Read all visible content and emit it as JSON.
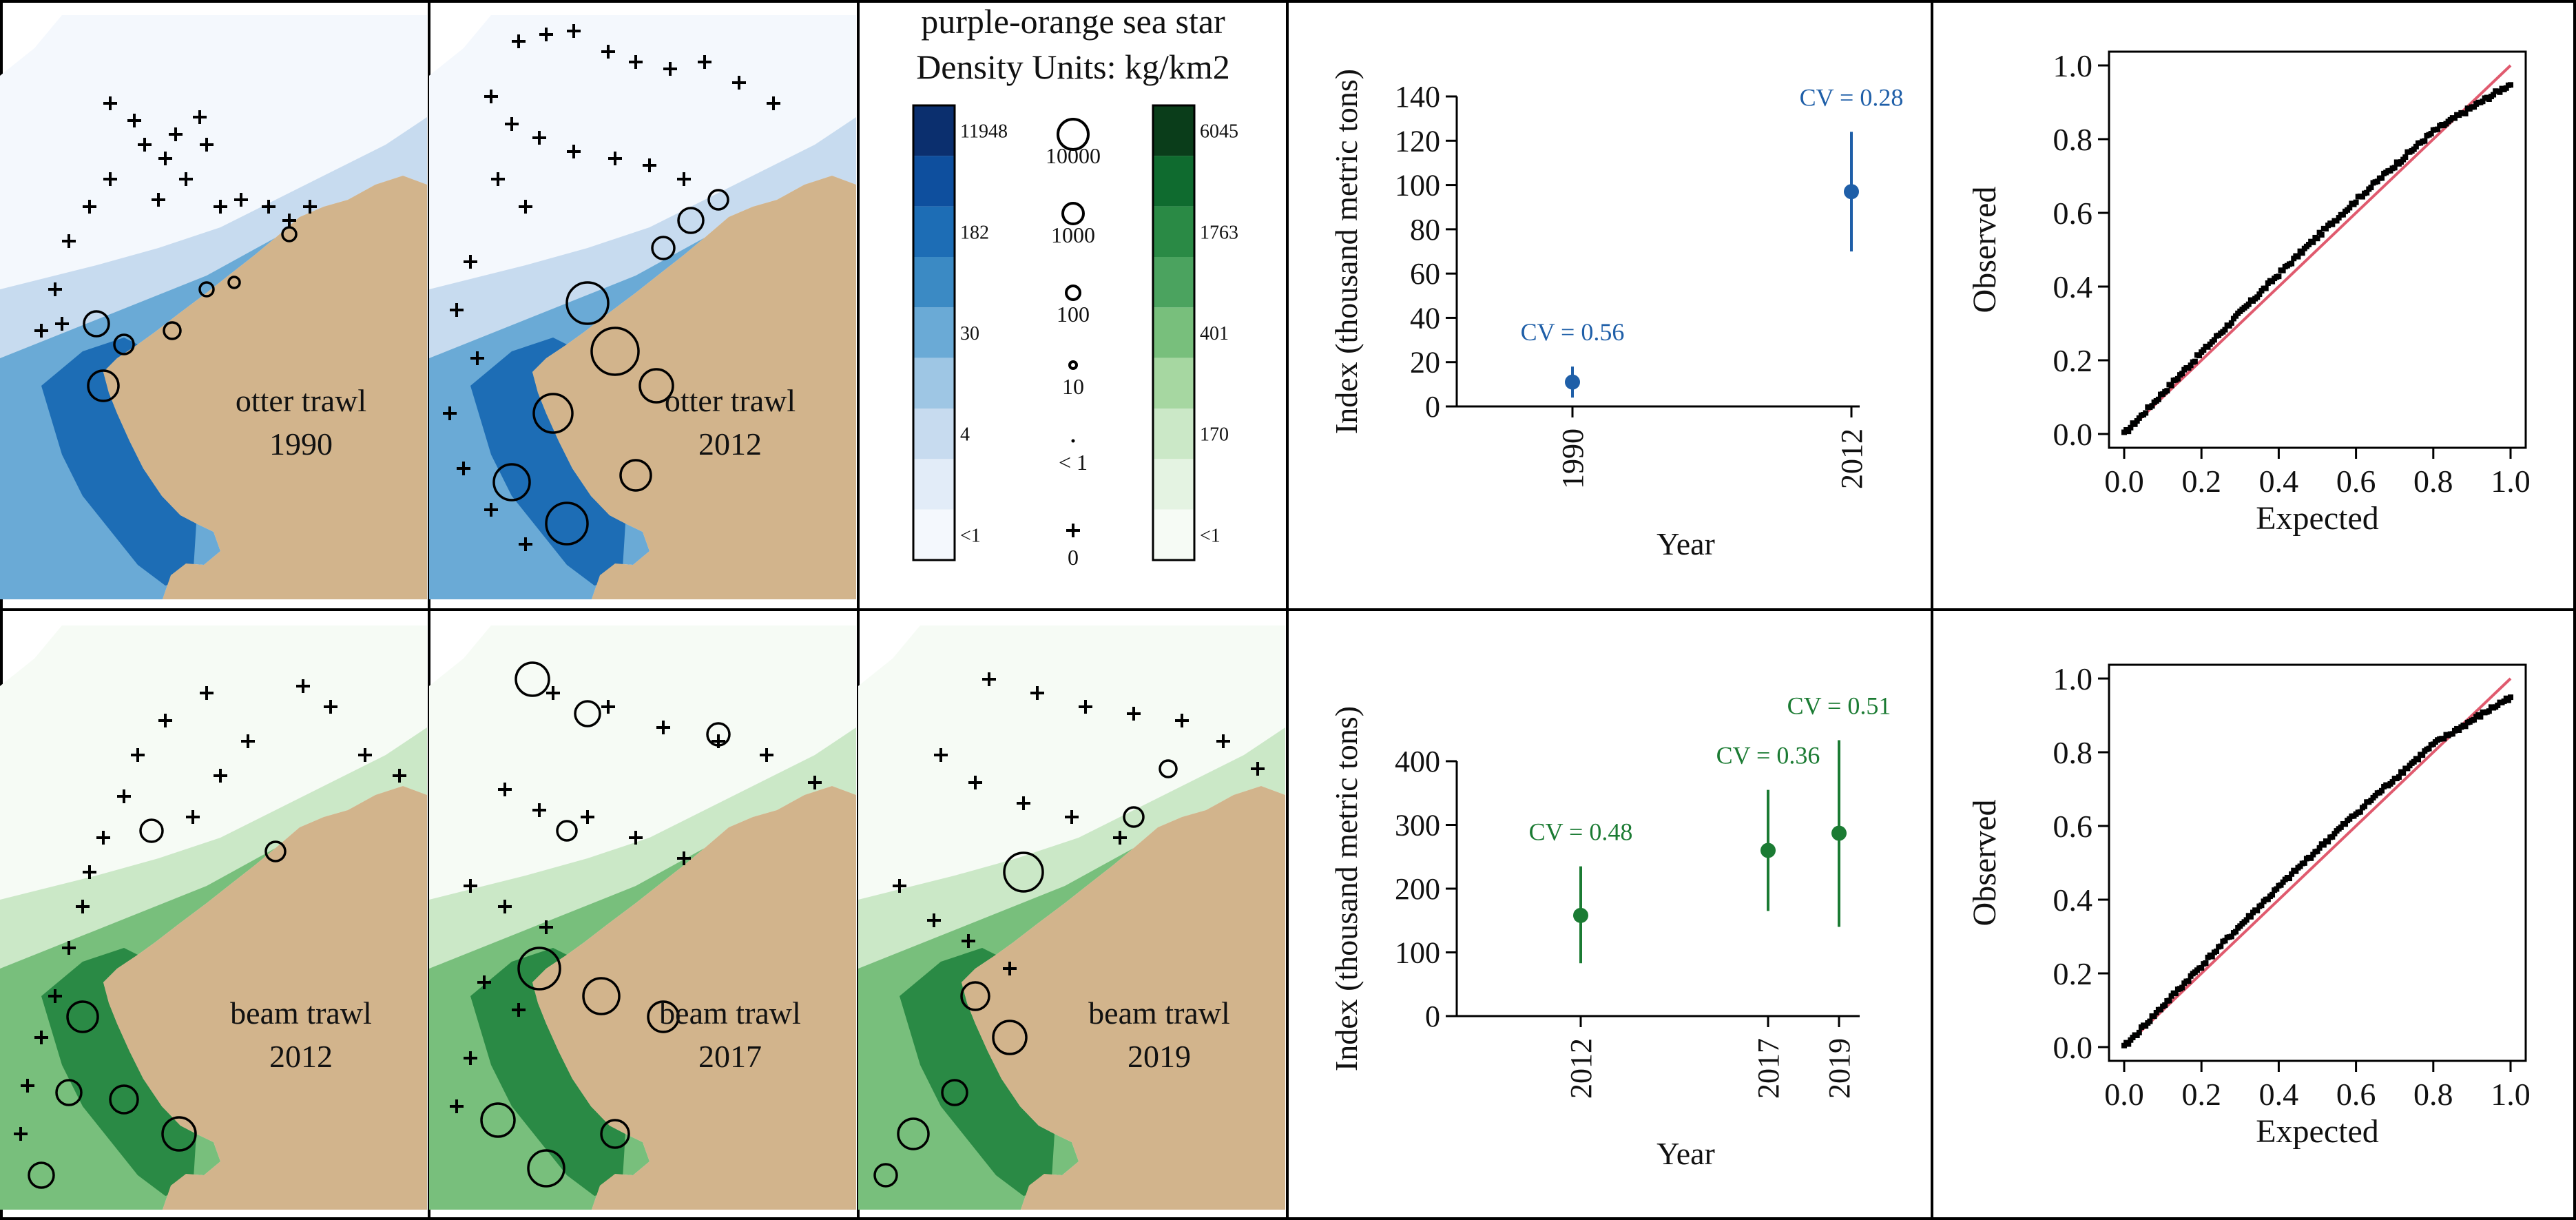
{
  "legend": {
    "title_line1": "purple-orange sea star",
    "title_line2": "Density Units: kg/km2",
    "blue_scale": {
      "labels": [
        "11948",
        "182",
        "30",
        "4",
        "<1"
      ],
      "colors": [
        "#0b2f6e",
        "#0e4f9e",
        "#1d6db5",
        "#3b8ac4",
        "#6aaad6",
        "#9ec6e4",
        "#c7dbef",
        "#e2ecf8",
        "#f4f8fd"
      ]
    },
    "green_scale": {
      "labels": [
        "6045",
        "1763",
        "401",
        "170",
        "<1"
      ],
      "colors": [
        "#0a3d1a",
        "#0f6b2f",
        "#2a8a45",
        "#4ba35f",
        "#78bf7c",
        "#a6d7a1",
        "#cbe8c7",
        "#e4f3e2",
        "#f6fbf5"
      ]
    },
    "size_legend": {
      "labels": [
        "10000",
        "1000",
        "100",
        "10",
        "< 1",
        "0"
      ]
    }
  },
  "maps": [
    {
      "gear": "otter trawl",
      "year": "1990",
      "scale": "blue"
    },
    {
      "gear": "otter trawl",
      "year": "2012",
      "scale": "blue"
    },
    {
      "gear": "beam trawl",
      "year": "2012",
      "scale": "green"
    },
    {
      "gear": "beam trawl",
      "year": "2017",
      "scale": "green"
    },
    {
      "gear": "beam trawl",
      "year": "2019",
      "scale": "green"
    }
  ],
  "land_color": "#d2b48c",
  "series_colors": {
    "otter": "#1f5fa8",
    "beam": "#1b7b33",
    "qq_line": "#e05a6e"
  },
  "chart_data": [
    {
      "type": "scatter",
      "id": "otter-index",
      "ylabel": "Index (thousand metric tons)",
      "xlabel": "Year",
      "x": [
        "1990",
        "2012"
      ],
      "values": [
        11,
        97
      ],
      "ci_low": [
        4,
        70
      ],
      "ci_high": [
        18,
        124
      ],
      "cv_labels": [
        "CV = 0.56",
        "CV = 0.28"
      ],
      "yticks": [
        0,
        20,
        40,
        60,
        80,
        100,
        120,
        140
      ],
      "ylim": [
        0,
        140
      ]
    },
    {
      "type": "scatter",
      "id": "beam-index",
      "ylabel": "Index (thousand metric tons)",
      "xlabel": "Year",
      "x": [
        "2012",
        "2017",
        "2019"
      ],
      "values": [
        158,
        260,
        287
      ],
      "ci_low": [
        83,
        165,
        140
      ],
      "ci_high": [
        235,
        355,
        433
      ],
      "cv_labels": [
        "CV = 0.48",
        "CV = 0.36",
        "CV = 0.51"
      ],
      "yticks": [
        0,
        100,
        200,
        300,
        400
      ],
      "ylim": [
        0,
        400
      ]
    },
    {
      "type": "scatter",
      "id": "otter-qq",
      "xlabel": "Expected",
      "ylabel": "Observed",
      "ticks": [
        "0.0",
        "0.2",
        "0.4",
        "0.6",
        "0.8",
        "1.0"
      ],
      "xlim": [
        0,
        1
      ],
      "ylim": [
        0,
        1
      ]
    },
    {
      "type": "scatter",
      "id": "beam-qq",
      "xlabel": "Expected",
      "ylabel": "Observed",
      "ticks": [
        "0.0",
        "0.2",
        "0.4",
        "0.6",
        "0.8",
        "1.0"
      ],
      "xlim": [
        0,
        1
      ],
      "ylim": [
        0,
        1
      ]
    }
  ]
}
